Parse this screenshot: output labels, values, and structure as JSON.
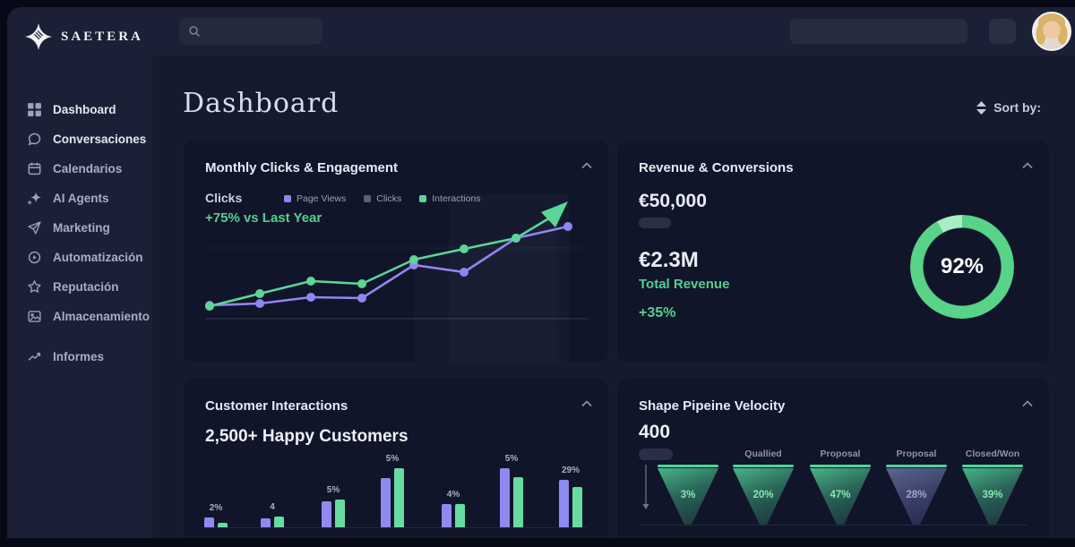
{
  "brand": {
    "name": "SAETERA"
  },
  "sidebar": {
    "items": [
      {
        "label": "Dashboard",
        "icon": "grid-icon"
      },
      {
        "label": "Conversaciones",
        "icon": "chat-icon"
      },
      {
        "label": "Calendarios",
        "icon": "calendar-icon"
      },
      {
        "label": "AI Agents",
        "icon": "sparkles-icon"
      },
      {
        "label": "Marketing",
        "icon": "send-icon"
      },
      {
        "label": "Automatización",
        "icon": "play-circle-icon"
      },
      {
        "label": "Reputación",
        "icon": "star-icon"
      },
      {
        "label": "Almacenamiento",
        "icon": "image-icon"
      },
      {
        "label": "Informes",
        "icon": "trend-icon"
      }
    ]
  },
  "header": {
    "title": "Dashboard",
    "sort_label": "Sort by:"
  },
  "cards": {
    "engagement": {
      "title": "Monthly Clicks & Engagement",
      "metric_label": "Clicks",
      "delta": "+75% vs Last Year",
      "legend": [
        {
          "label": "Page Views",
          "color": "#8F86EF"
        },
        {
          "label": "Clicks",
          "color": "#596076"
        },
        {
          "label": "Interactions",
          "color": "#5BD598"
        }
      ],
      "chart_data": {
        "type": "line",
        "x": [
          1,
          2,
          3,
          4,
          5,
          6,
          7,
          8
        ],
        "series": [
          {
            "name": "Page Views",
            "color": "#8F86EF",
            "points": [
              [
                29,
                184
              ],
              [
                85,
                182
              ],
              [
                142,
                175
              ],
              [
                199,
                176
              ],
              [
                257,
                139
              ],
              [
                313,
                147
              ],
              [
                371,
                109
              ],
              [
                429,
                96
              ]
            ]
          },
          {
            "name": "Interactions",
            "color": "#5BD598",
            "arrow": true,
            "points": [
              [
                29,
                185
              ],
              [
                85,
                171
              ],
              [
                142,
                157
              ],
              [
                199,
                160
              ],
              [
                257,
                133
              ],
              [
                313,
                121
              ],
              [
                371,
                109
              ],
              [
                416,
                82
              ]
            ]
          }
        ],
        "baseline_y": 199,
        "grid_y": 120
      }
    },
    "revenue": {
      "title": "Revenue & Conversions",
      "value_primary": "€50,000",
      "value_secondary": "€2.3M",
      "secondary_label": "Total Revenue",
      "delta": "+35%",
      "donut": {
        "percent": 92,
        "label": "92%",
        "color": "#58D388",
        "remainder_color": "#A9EDC6"
      }
    },
    "customers": {
      "title": "Customer Interactions",
      "headline": "2,500+ Happy Customers",
      "chart_data": {
        "type": "bar",
        "series_names": [
          "purple",
          "green"
        ],
        "colors": {
          "purple": "#8F8AEF",
          "green": "#67DBA2"
        },
        "groups": [
          {
            "label": "2%",
            "purple": 11,
            "green": 5
          },
          {
            "label": "4",
            "purple": 10,
            "green": 12
          },
          {
            "label": "5%",
            "purple": 29,
            "green": 31
          },
          {
            "label": "5%",
            "purple": 55,
            "green": 66
          },
          {
            "label": "4%",
            "purple": 26,
            "green": 26
          },
          {
            "label": "5%",
            "purple": 66,
            "green": 56
          },
          {
            "label": "29%",
            "purple": 53,
            "green": 45
          }
        ],
        "group_centers": [
          36,
          99,
          167,
          233,
          301,
          366,
          432
        ]
      }
    },
    "pipeline": {
      "title": "Shape Pipeine Velocity",
      "value": "400",
      "chart_data": {
        "type": "funnel",
        "stages": [
          {
            "label": "",
            "percent": "3%",
            "variant": "green"
          },
          {
            "label": "Quallied",
            "percent": "20%",
            "variant": "green"
          },
          {
            "label": "Proposal",
            "percent": "47%",
            "variant": "green"
          },
          {
            "label": "Proposal",
            "percent": "28%",
            "variant": "slate"
          },
          {
            "label": "Closed/Won",
            "percent": "39%",
            "variant": "green"
          }
        ],
        "stage_centers": [
          79,
          163,
          249,
          334,
          419
        ]
      }
    }
  }
}
